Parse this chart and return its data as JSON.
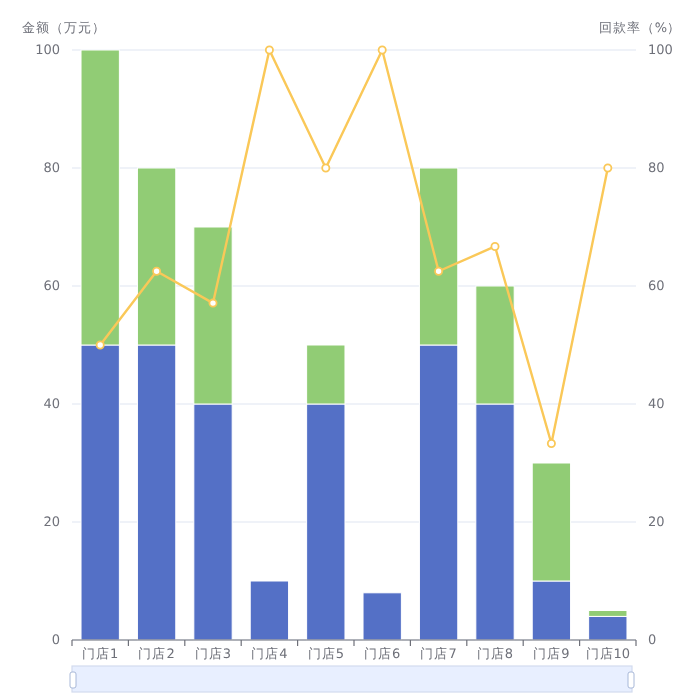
{
  "chart_data": {
    "type": "bar",
    "ylabel": "金额（万元）",
    "y2label": "回款率（%）",
    "categories": [
      "门店1",
      "门店2",
      "门店3",
      "门店4",
      "门店5",
      "门店6",
      "门店7",
      "门店8",
      "门店9",
      "门店10"
    ],
    "series": [
      {
        "color": "#5470c6",
        "values": [
          50,
          50,
          40,
          10,
          40,
          8,
          50,
          40,
          10,
          4
        ]
      },
      {
        "color": "#91cc75",
        "values": [
          50,
          30,
          30,
          0,
          10,
          0,
          30,
          20,
          20,
          1
        ]
      },
      {
        "type": "line",
        "axis": "y2",
        "color": "#fac858",
        "values": [
          50,
          62.5,
          57.1,
          100,
          80,
          100,
          62.5,
          66.7,
          33.3,
          80
        ]
      }
    ],
    "stacked": true,
    "ylim": [
      0,
      100
    ],
    "yticks": [
      0,
      20,
      40,
      60,
      80,
      100
    ],
    "y2lim": [
      0,
      100
    ],
    "y2ticks": [
      0,
      20,
      40,
      60,
      80,
      100
    ],
    "grid": "y",
    "marker": "circle"
  }
}
